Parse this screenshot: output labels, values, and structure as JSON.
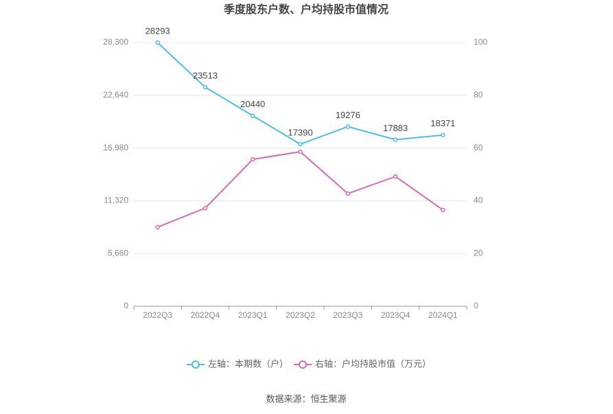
{
  "chart_data": {
    "type": "line",
    "title": "季度股东户数、户均持股市值情况",
    "categories": [
      "2022Q3",
      "2022Q4",
      "2023Q1",
      "2023Q2",
      "2023Q3",
      "2023Q4",
      "2024Q1"
    ],
    "series": [
      {
        "name": "左轴：本期数（户）",
        "color": "#4dbde8",
        "values": [
          28293,
          23513,
          20440,
          17390,
          19276,
          17883,
          18371
        ]
      },
      {
        "name": "右轴：户均持股市值（万元）",
        "color": "#d56bb5",
        "axis": "y2",
        "values": [
          30,
          37.2,
          55.7,
          58.6,
          42.7,
          49.2,
          36.5
        ]
      }
    ],
    "ylim": [
      0,
      28300
    ],
    "yticks": [
      0,
      {
        "value": 5660,
        "label": "5,660"
      },
      {
        "value": 11320,
        "label": "11,320"
      },
      {
        "value": 16980,
        "label": "16,980"
      },
      {
        "value": 22640,
        "label": "22,640"
      },
      {
        "value": 28300,
        "label": "28,300"
      }
    ],
    "y2lim": [
      0,
      100
    ],
    "y2ticks": [
      0,
      20,
      40,
      60,
      80,
      100
    ],
    "grid": true,
    "legend": "bottom",
    "source": "数据来源：恒生聚源"
  }
}
